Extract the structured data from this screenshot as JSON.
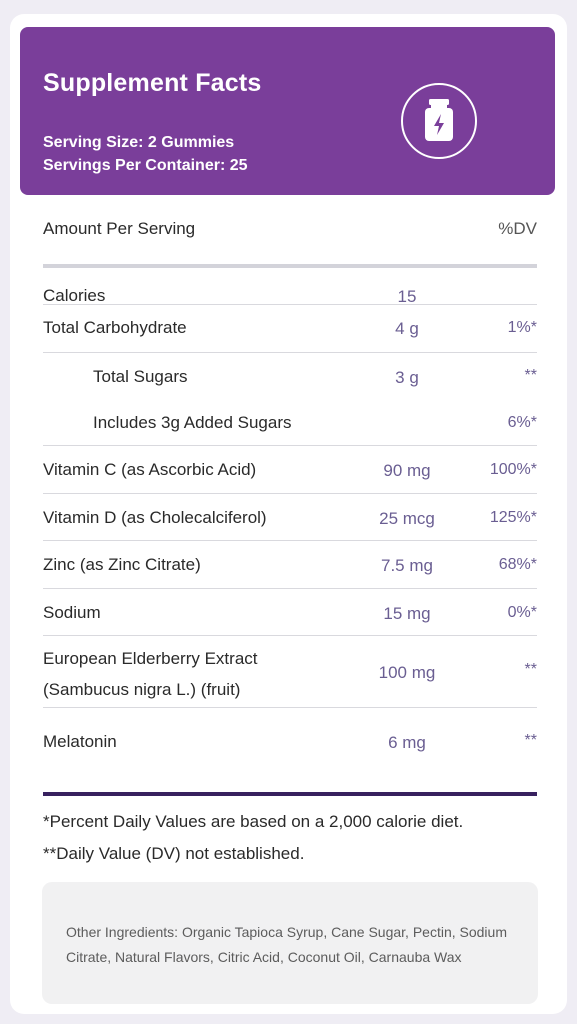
{
  "header": {
    "title": "Supplement Facts",
    "serving_size": "Serving Size: 2 Gummies",
    "servings_per_container": "Servings Per Container: 25",
    "icon": "supplement-bottle-icon"
  },
  "table": {
    "amount_header": "Amount Per Serving",
    "dv_header": "%DV",
    "rows": [
      {
        "name": "Calories",
        "amount": "15",
        "dv": ""
      },
      {
        "name": "Total Carbohydrate",
        "amount": "4 g",
        "dv": "1%*"
      },
      {
        "name": "Total Sugars",
        "amount": "3 g",
        "dv": "**"
      },
      {
        "name": "Includes 3g Added Sugars",
        "amount": "",
        "dv": "6%*"
      },
      {
        "name": "Vitamin C (as Ascorbic Acid)",
        "amount": "90 mg",
        "dv": "100%*"
      },
      {
        "name": "Vitamin D (as Cholecalciferol)",
        "amount": "25 mcg",
        "dv": "125%*"
      },
      {
        "name": "Zinc (as Zinc Citrate)",
        "amount": "7.5 mg",
        "dv": "68%*"
      },
      {
        "name": "Sodium",
        "amount": "15 mg",
        "dv": "0%*"
      },
      {
        "name_line1": "European Elderberry Extract",
        "name_line2": "(Sambucus nigra L.) (fruit)",
        "amount": "100 mg",
        "dv": "**"
      },
      {
        "name": "Melatonin",
        "amount": "6 mg",
        "dv": "**"
      }
    ]
  },
  "footnotes": {
    "percent_dv": "*Percent Daily Values are based on a 2,000 calorie diet.",
    "not_established": "**Daily Value (DV) not established."
  },
  "ingredients": {
    "text": "Other Ingredients: Organic Tapioca Syrup, Cane Sugar, Pectin, Sodium Citrate, Natural Flavors, Citric Acid, Coconut Oil, Carnauba Wax"
  },
  "colors": {
    "header_purple": "#7a3e9a",
    "value_purple": "#6a5e92",
    "bottom_bar": "#38215f"
  }
}
